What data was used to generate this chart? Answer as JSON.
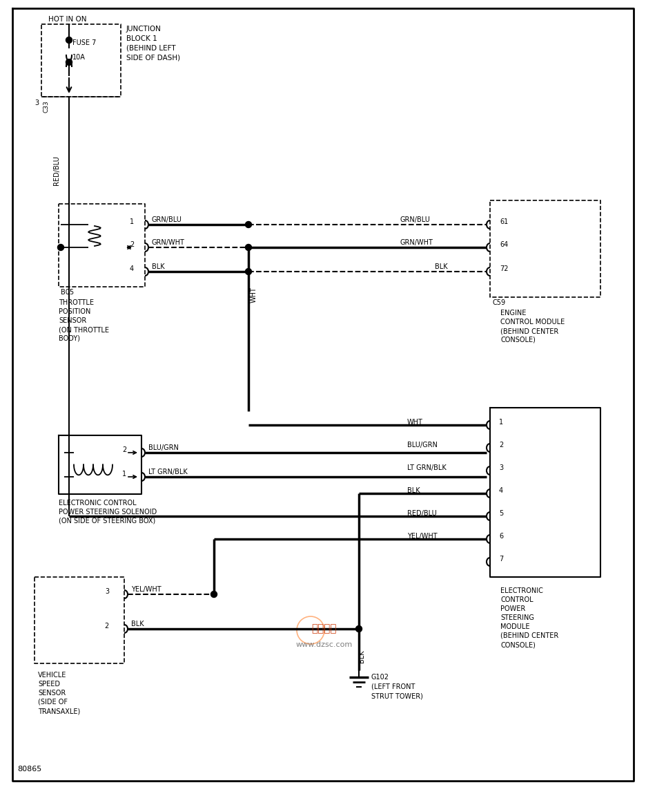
{
  "bg_color": "#ffffff",
  "line_color": "#000000",
  "page_num": "80865",
  "jb_text": [
    "JUNCTION",
    "BLOCK 1",
    "(BEHIND LEFT",
    "SIDE OF DASH)"
  ],
  "fuse_text": [
    "FUSE 7",
    "10A"
  ],
  "connector_c33": "C33",
  "red_blu_label": "RED/BLU",
  "tps_connector": "B05",
  "tps_label": [
    "THROTTLE",
    "POSITION",
    "SENSOR",
    "(ON THROTTLE",
    "BODY)"
  ],
  "tps_wires": [
    [
      "1",
      "GRN/BLU"
    ],
    [
      "2",
      "GRN/WHT"
    ],
    [
      "4",
      "BLK"
    ]
  ],
  "ecm_connector": "C59",
  "ecm_label": [
    "ENGINE",
    "CONTROL MODULE",
    "(BEHIND CENTER",
    "CONSOLE)"
  ],
  "ecm_pins": [
    [
      "61",
      "GRN/BLU"
    ],
    [
      "64",
      "GRN/WHT"
    ],
    [
      "72",
      "BLK"
    ]
  ],
  "wht_label": "WHT",
  "sol_label": [
    "ELECTRONIC CONTROL",
    "POWER STEERING SOLENOID",
    "(ON SIDE OF STEERING BOX)"
  ],
  "sol_wires": [
    [
      "2",
      "BLU/GRN"
    ],
    [
      "1",
      "LT GRN/BLK"
    ]
  ],
  "ecps_label": [
    "ELECTRONIC",
    "CONTROL",
    "POWER",
    "STEERING",
    "MODULE",
    "(BEHIND CENTER",
    "CONSOLE)"
  ],
  "ecps_wires": [
    [
      "1",
      "WHT"
    ],
    [
      "2",
      "BLU/GRN"
    ],
    [
      "3",
      "LT GRN/BLK"
    ],
    [
      "4",
      "BLK"
    ],
    [
      "5",
      "RED/BLU"
    ],
    [
      "6",
      "YEL/WHT"
    ],
    [
      "7",
      ""
    ]
  ],
  "vss_label": [
    "VEHICLE",
    "SPEED",
    "SENSOR",
    "(SIDE OF",
    "TRANSAXLE)"
  ],
  "vss_wires": [
    [
      "3",
      "YEL/WHT"
    ],
    [
      "2",
      "BLK"
    ]
  ],
  "ground_label": [
    "G102",
    "(LEFT FRONT",
    "STRUT TOWER)"
  ],
  "watermark": [
    "维库一下",
    "www.dzsc.com"
  ]
}
